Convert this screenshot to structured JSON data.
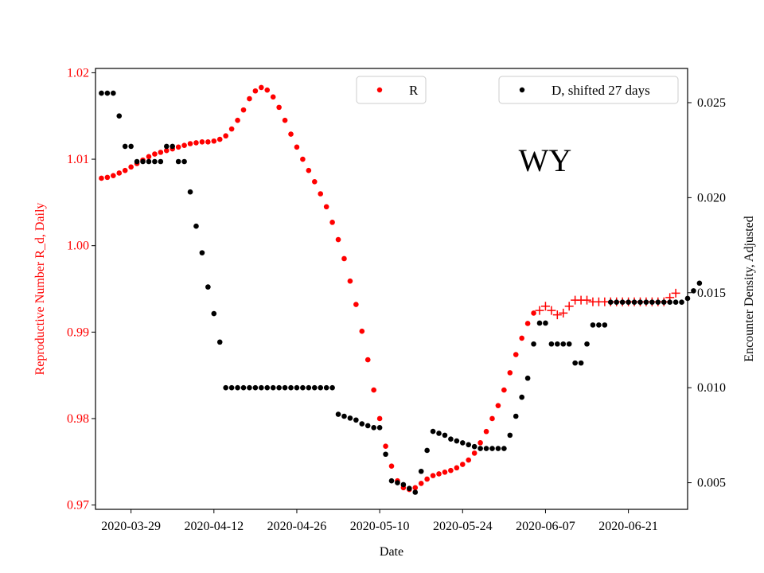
{
  "chart_data": {
    "type": "scatter",
    "annotation": "WY",
    "xlabel": "Date",
    "y1label": "Reproductive Number R_d, Daily",
    "y2label": "Encounter Density, Adjusted",
    "colors": {
      "r": "#ff0000",
      "d": "#000000",
      "forecast": "#ff0000",
      "y1_axis": "#ff0000"
    },
    "legend": {
      "r": {
        "label": "R",
        "placement": "top-center"
      },
      "d": {
        "label": "D, shifted 27 days",
        "placement": "top-right"
      }
    },
    "x_ticks": [
      "2020-03-29",
      "2020-04-12",
      "2020-04-26",
      "2020-05-10",
      "2020-05-24",
      "2020-06-07",
      "2020-06-21"
    ],
    "x_range": [
      "2020-03-23",
      "2020-07-01"
    ],
    "y1_ticks": [
      "0.97",
      "0.98",
      "0.99",
      "1.00",
      "1.01",
      "1.02"
    ],
    "y1_range": [
      0.9695,
      1.0205
    ],
    "y2_ticks": [
      "0.005",
      "0.010",
      "0.015",
      "0.020",
      "0.025"
    ],
    "y2_range": [
      0.0036,
      0.0268
    ],
    "r_series": {
      "start_date": "2020-03-24",
      "values": [
        1.0078,
        1.0079,
        1.0081,
        1.0084,
        1.0087,
        1.0091,
        1.0095,
        1.0099,
        1.0103,
        1.0106,
        1.0108,
        1.011,
        1.0112,
        1.0114,
        1.0116,
        1.0118,
        1.0119,
        1.012,
        1.012,
        1.0121,
        1.0123,
        1.0127,
        1.0135,
        1.0145,
        1.0157,
        1.017,
        1.0179,
        1.0183,
        1.018,
        1.0172,
        1.016,
        1.0145,
        1.0129,
        1.0114,
        1.01,
        1.0087,
        1.0074,
        1.006,
        1.0045,
        1.0027,
        1.0007,
        0.9985,
        0.9959,
        0.9932,
        0.9901,
        0.9868,
        0.9833,
        0.98,
        0.9768,
        0.9745,
        0.9728,
        0.972,
        0.9718,
        0.972,
        0.9725,
        0.973,
        0.9734,
        0.9736,
        0.9738,
        0.974,
        0.9743,
        0.9747,
        0.9752,
        0.976,
        0.9772,
        0.9785,
        0.98,
        0.9815,
        0.9833,
        0.9853,
        0.9874,
        0.9893,
        0.991,
        0.9922
      ]
    },
    "r_forecast": {
      "start_date": "2020-06-06",
      "values": [
        0.9925,
        0.993,
        0.9925,
        0.992,
        0.9922,
        0.993,
        0.9937,
        0.9937,
        0.9937,
        0.9935,
        0.9935,
        0.9935,
        0.9935,
        0.9935,
        0.9935,
        0.9935,
        0.9935,
        0.9935,
        0.9935,
        0.9935,
        0.9935,
        0.9935,
        0.994,
        0.9945
      ]
    },
    "d_series": {
      "start_date": "2020-03-24",
      "values": [
        0.0255,
        0.0255,
        0.0255,
        0.0243,
        0.0227,
        0.0227,
        0.0219,
        0.0219,
        0.0219,
        0.0219,
        0.0219,
        0.0227,
        0.0227,
        0.0219,
        0.0219,
        0.0203,
        0.0185,
        0.0171,
        0.0153,
        0.0139,
        0.0124,
        0.01,
        0.01,
        0.01,
        0.01,
        0.01,
        0.01,
        0.01,
        0.01,
        0.01,
        0.01,
        0.01,
        0.01,
        0.01,
        0.01,
        0.01,
        0.01,
        0.01,
        0.01,
        0.01,
        0.0086,
        0.0085,
        0.0084,
        0.0083,
        0.0081,
        0.008,
        0.0079,
        0.0079,
        0.0065,
        0.0051,
        0.005,
        0.0049,
        0.0047,
        0.0045,
        0.0056,
        0.0067,
        0.0077,
        0.0076,
        0.0075,
        0.0073,
        0.0072,
        0.0071,
        0.007,
        0.0069,
        0.0068,
        0.0068,
        0.0068,
        0.0068,
        0.0068,
        0.0075,
        0.0085,
        0.0095,
        0.0105,
        0.0123,
        0.0134,
        0.0134,
        0.0123,
        0.0123,
        0.0123,
        0.0123,
        0.0113,
        0.0113,
        0.0123,
        0.0133,
        0.0133,
        0.0133,
        0.0145,
        0.0145,
        0.0145,
        0.0145,
        0.0145,
        0.0145,
        0.0145,
        0.0145,
        0.0145,
        0.0145,
        0.0145,
        0.0145,
        0.0145,
        0.0147,
        0.0151,
        0.0155
      ]
    }
  }
}
